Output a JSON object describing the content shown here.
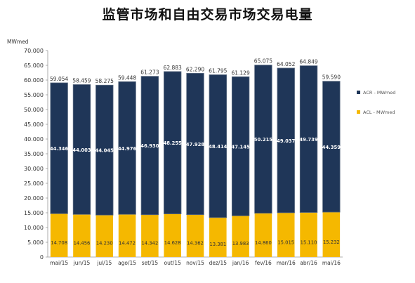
{
  "chart_data": {
    "type": "bar",
    "stacked": true,
    "title": "监管市场和自由交易市场交易电量",
    "ylabel": "MWmed",
    "ylim": [
      0,
      70
    ],
    "yticks": [
      "0",
      "5.000",
      "10.000",
      "15.000",
      "20.000",
      "25.000",
      "30.000",
      "35.000",
      "40.000",
      "45.000",
      "50.000",
      "55.000",
      "60.000",
      "65.000",
      "70.000"
    ],
    "categories": [
      "mai/15",
      "jun/15",
      "jul/15",
      "ago/15",
      "set/15",
      "out/15",
      "nov/15",
      "dez/15",
      "jan/16",
      "fev/16",
      "mar/16",
      "abr/16",
      "mai/16"
    ],
    "series": [
      {
        "name": "ACL - MWmed",
        "color": "#f5b800",
        "values": [
          14.708,
          14.456,
          14.23,
          14.472,
          14.342,
          14.628,
          14.362,
          13.381,
          13.983,
          14.86,
          15.015,
          15.11,
          15.232
        ],
        "labels": [
          "14.708",
          "14.456",
          "14.230",
          "14.472",
          "14.342",
          "14.628",
          "14.362",
          "13.381",
          "13.983",
          "14.860",
          "15.015",
          "15.110",
          "15.232"
        ]
      },
      {
        "name": "ACR - MWmed",
        "color": "#1f3658",
        "values": [
          44.346,
          44.003,
          44.045,
          44.976,
          46.93,
          48.255,
          47.928,
          48.414,
          47.145,
          50.215,
          49.037,
          49.739,
          44.359
        ],
        "labels": [
          "44.346",
          "44.003",
          "44.045",
          "44.976",
          "46.930",
          "48.255",
          "47.928",
          "48.414",
          "47.145",
          "50.215",
          "49.037",
          "49.739",
          "44.359"
        ]
      }
    ],
    "totals": [
      59.054,
      58.459,
      58.275,
      59.448,
      61.273,
      62.883,
      62.29,
      61.795,
      61.129,
      65.075,
      64.052,
      64.849,
      59.59
    ],
    "total_labels": [
      "59.054",
      "58.459",
      "58.275",
      "59.448",
      "61.273",
      "62.883",
      "62.290",
      "61.795",
      "61.129",
      "65.075",
      "64.052",
      "64.849",
      "59.590"
    ],
    "grid": false,
    "legend_placement": "right"
  }
}
